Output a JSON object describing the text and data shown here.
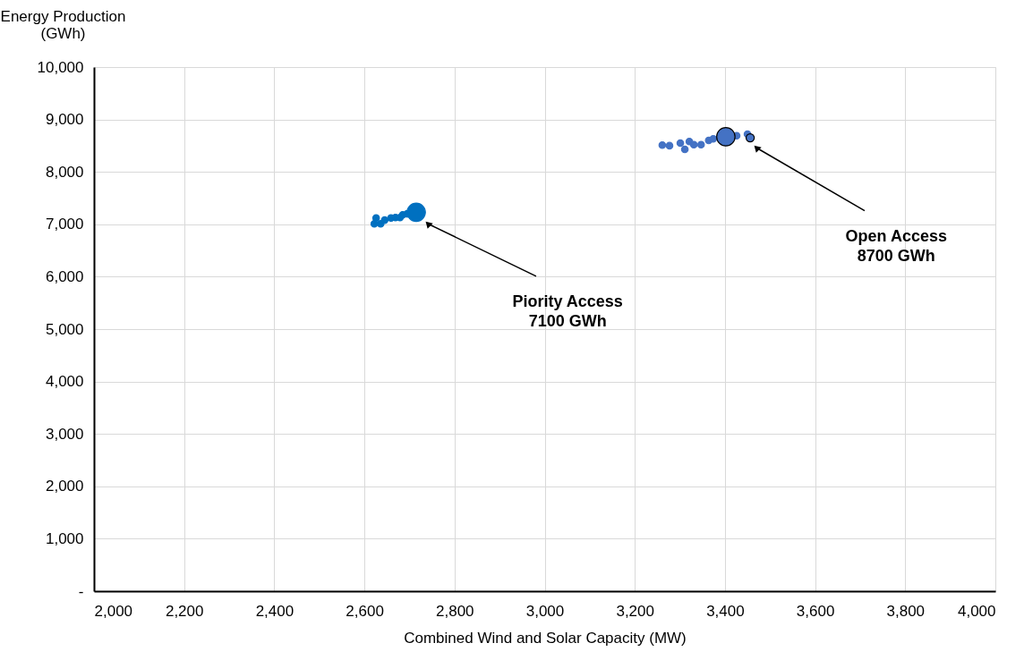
{
  "chart_data": {
    "type": "bubble",
    "xlabel": "Combined Wind and Solar Capacity (MW)",
    "ylabel": "Energy Production\n(GWh)",
    "xlim": [
      2000,
      4000
    ],
    "xticks": [
      {
        "value": 2000,
        "label": "2,000"
      },
      {
        "value": 2200,
        "label": "2,200"
      },
      {
        "value": 2400,
        "label": "2,400"
      },
      {
        "value": 2600,
        "label": "2,600"
      },
      {
        "value": 2800,
        "label": "2,800"
      },
      {
        "value": 3000,
        "label": "3,000"
      },
      {
        "value": 3200,
        "label": "3,200"
      },
      {
        "value": 3400,
        "label": "3,400"
      },
      {
        "value": 3600,
        "label": "3,600"
      },
      {
        "value": 3800,
        "label": "3,800"
      },
      {
        "value": 4000,
        "label": "4,000"
      }
    ],
    "ylim": [
      0,
      10000
    ],
    "yticks": [
      {
        "value": 0,
        "label": "-"
      },
      {
        "value": 1000,
        "label": "1,000"
      },
      {
        "value": 2000,
        "label": "2,000"
      },
      {
        "value": 3000,
        "label": "3,000"
      },
      {
        "value": 4000,
        "label": "4,000"
      },
      {
        "value": 5000,
        "label": "5,000"
      },
      {
        "value": 6000,
        "label": "6,000"
      },
      {
        "value": 7000,
        "label": "7,000"
      },
      {
        "value": 8000,
        "label": "8,000"
      },
      {
        "value": 9000,
        "label": "9,000"
      },
      {
        "value": 10000,
        "label": "10,000"
      }
    ],
    "grid": true,
    "marker": "circle",
    "series": [
      {
        "color": "#0070c0",
        "x": [
          2622,
          2626,
          2636,
          2645,
          2659,
          2669,
          2679,
          2685,
          2695,
          2715
        ],
        "values": [
          7010,
          7120,
          7010,
          7080,
          7120,
          7130,
          7130,
          7180,
          7200,
          7230
        ],
        "sizes": [
          0.13,
          0.13,
          0.13,
          0.13,
          0.13,
          0.13,
          0.13,
          0.13,
          0.13,
          1
        ]
      },
      {
        "color": "#4472c4",
        "x": [
          3261,
          3277,
          3301,
          3311,
          3321,
          3331,
          3347,
          3364,
          3374,
          3426,
          3450
        ],
        "values": [
          8510,
          8500,
          8550,
          8430,
          8580,
          8520,
          8520,
          8600,
          8630,
          8690,
          8720
        ],
        "sizes": [
          0.13,
          0.13,
          0.13,
          0.13,
          0.13,
          0.13,
          0.13,
          0.13,
          0.13,
          0.13,
          0.13
        ]
      },
      {
        "color": "#4472c4",
        "x": [
          3402,
          3456
        ],
        "values": [
          8670,
          8650
        ],
        "sizes": [
          1,
          0.2
        ]
      }
    ],
    "annotations": [
      {
        "text": "Piority Access\n7100 GWh",
        "x": 2741,
        "y": 7010
      },
      {
        "text": "Open Access\n8700 GWh",
        "x": 3470,
        "y": 8460
      }
    ]
  }
}
